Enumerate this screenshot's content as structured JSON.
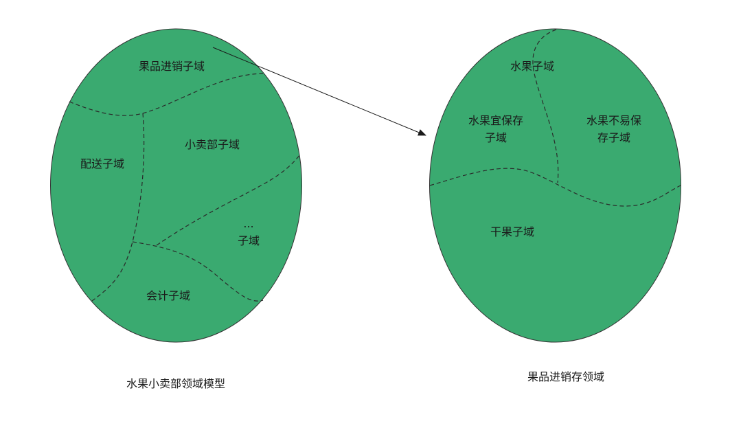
{
  "colors": {
    "region_fill": "#3aaa70",
    "outline": "#333333"
  },
  "left_model": {
    "caption": "水果小卖部领域模型",
    "subdomains": {
      "fruit_trade": "果品进销子域",
      "delivery": "配送子域",
      "shop": "小卖部子域",
      "other_dots": "...",
      "other": "子域",
      "accounting": "会计子域"
    }
  },
  "right_model": {
    "caption": "果品进销存领域",
    "subdomains": {
      "fruit": "水果子域",
      "storable_1": "水果宜保存",
      "storable_2": "子域",
      "perishable_1": "水果不易保",
      "perishable_2": "存子域",
      "dried": "干果子域"
    }
  }
}
